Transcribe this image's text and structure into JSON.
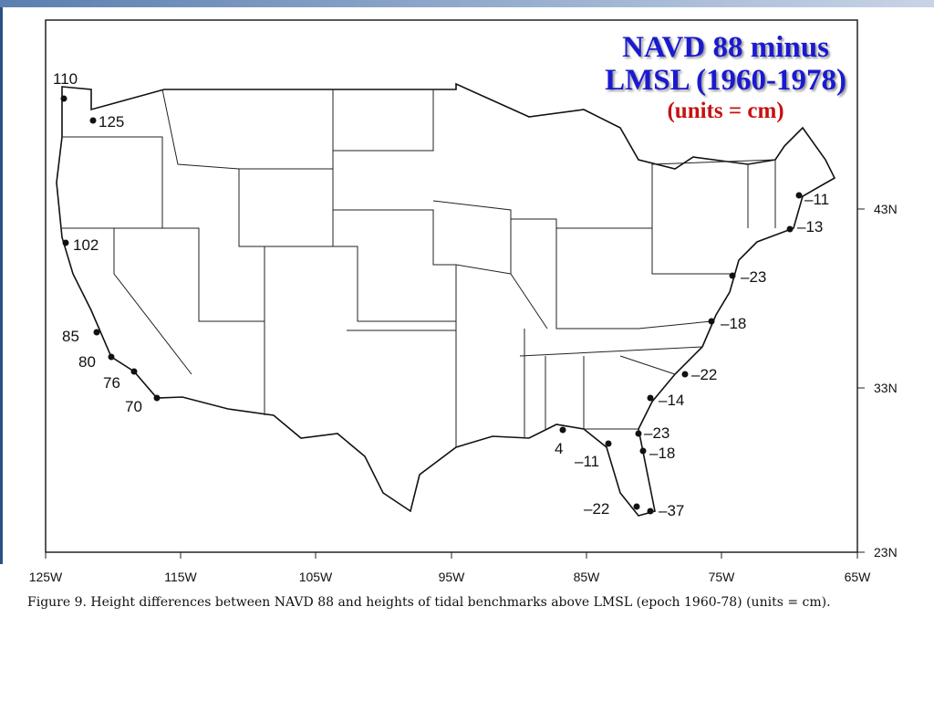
{
  "title_lines": [
    "NAVD 88 minus",
    "LMSL (1960-1978)"
  ],
  "subtitle": "(units = cm)",
  "lon_ticks": [
    "125W",
    "115W",
    "105W",
    "95W",
    "85W",
    "75W",
    "65W"
  ],
  "lat_ticks": [
    "43N",
    "33N",
    "23N"
  ],
  "stations": [
    "110",
    "125",
    "102",
    "85",
    "80",
    "76",
    "70",
    "–11",
    "–13",
    "–23",
    "–18",
    "–22",
    "–14",
    "–23",
    "–18",
    "4",
    "–11",
    "–22",
    "–37"
  ],
  "caption": "Figure 9. Height differences between NAVD 88 and heights of tidal benchmarks above LMSL (epoch 1960-78) (units = cm)."
}
